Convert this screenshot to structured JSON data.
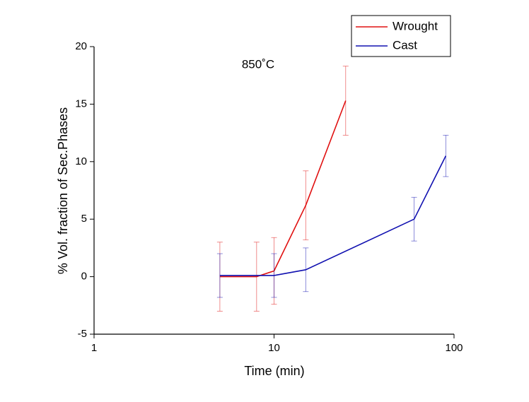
{
  "chart_data": {
    "type": "line",
    "x_label": "Time (min)",
    "y_label": "% Vol. fraction of Sec.Phases",
    "annotation": "850˚C",
    "xscale": "log",
    "xlim": [
      1,
      100
    ],
    "xticks": [
      1,
      10,
      100
    ],
    "ylim": [
      -5,
      20
    ],
    "yticks": [
      -5,
      0,
      5,
      10,
      15,
      20
    ],
    "legend": "top-right",
    "series": [
      {
        "name": "Wrought",
        "color": "#e01010",
        "x": [
          5,
          8,
          10,
          15,
          25
        ],
        "values": [
          0,
          0,
          0.5,
          6.2,
          15.3
        ],
        "errors": [
          3,
          3,
          2.9,
          3,
          3
        ]
      },
      {
        "name": "Cast",
        "color": "#1010b0",
        "x": [
          5,
          10,
          15,
          60,
          90
        ],
        "values": [
          0.1,
          0.1,
          0.6,
          5,
          10.5
        ],
        "errors": [
          1.9,
          1.9,
          1.9,
          1.9,
          1.8
        ]
      }
    ]
  }
}
